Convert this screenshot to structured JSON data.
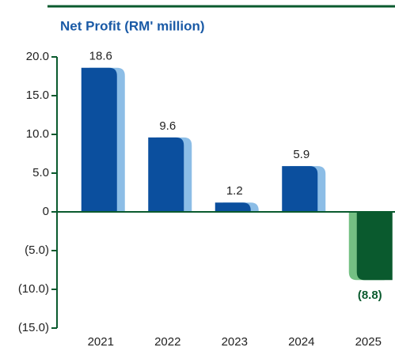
{
  "chart_data": {
    "type": "bar",
    "title": "Net Profit (RM' million)",
    "categories": [
      "2021",
      "2022",
      "2023",
      "2024",
      "2025"
    ],
    "values": [
      18.6,
      9.6,
      1.2,
      5.9,
      -8.8
    ],
    "value_labels": [
      "18.6",
      "9.6",
      "1.2",
      "5.9",
      "(8.8)"
    ],
    "color": "#0b4f9e",
    "shadow_color": "#8cbde6",
    "negative_color": "#0a5a2e",
    "negative_shadow_color": "#74c083",
    "ylim": [
      -15,
      20
    ],
    "yticks": [
      {
        "value": 20,
        "label": "20.0"
      },
      {
        "value": 15,
        "label": "15.0"
      },
      {
        "value": 10,
        "label": "10.0"
      },
      {
        "value": 5,
        "label": "5.0"
      },
      0,
      {
        "value": -5,
        "label": "(5.0)"
      },
      {
        "value": -10,
        "label": "(10.0)"
      },
      {
        "value": -15,
        "label": "(15.0)"
      }
    ]
  }
}
